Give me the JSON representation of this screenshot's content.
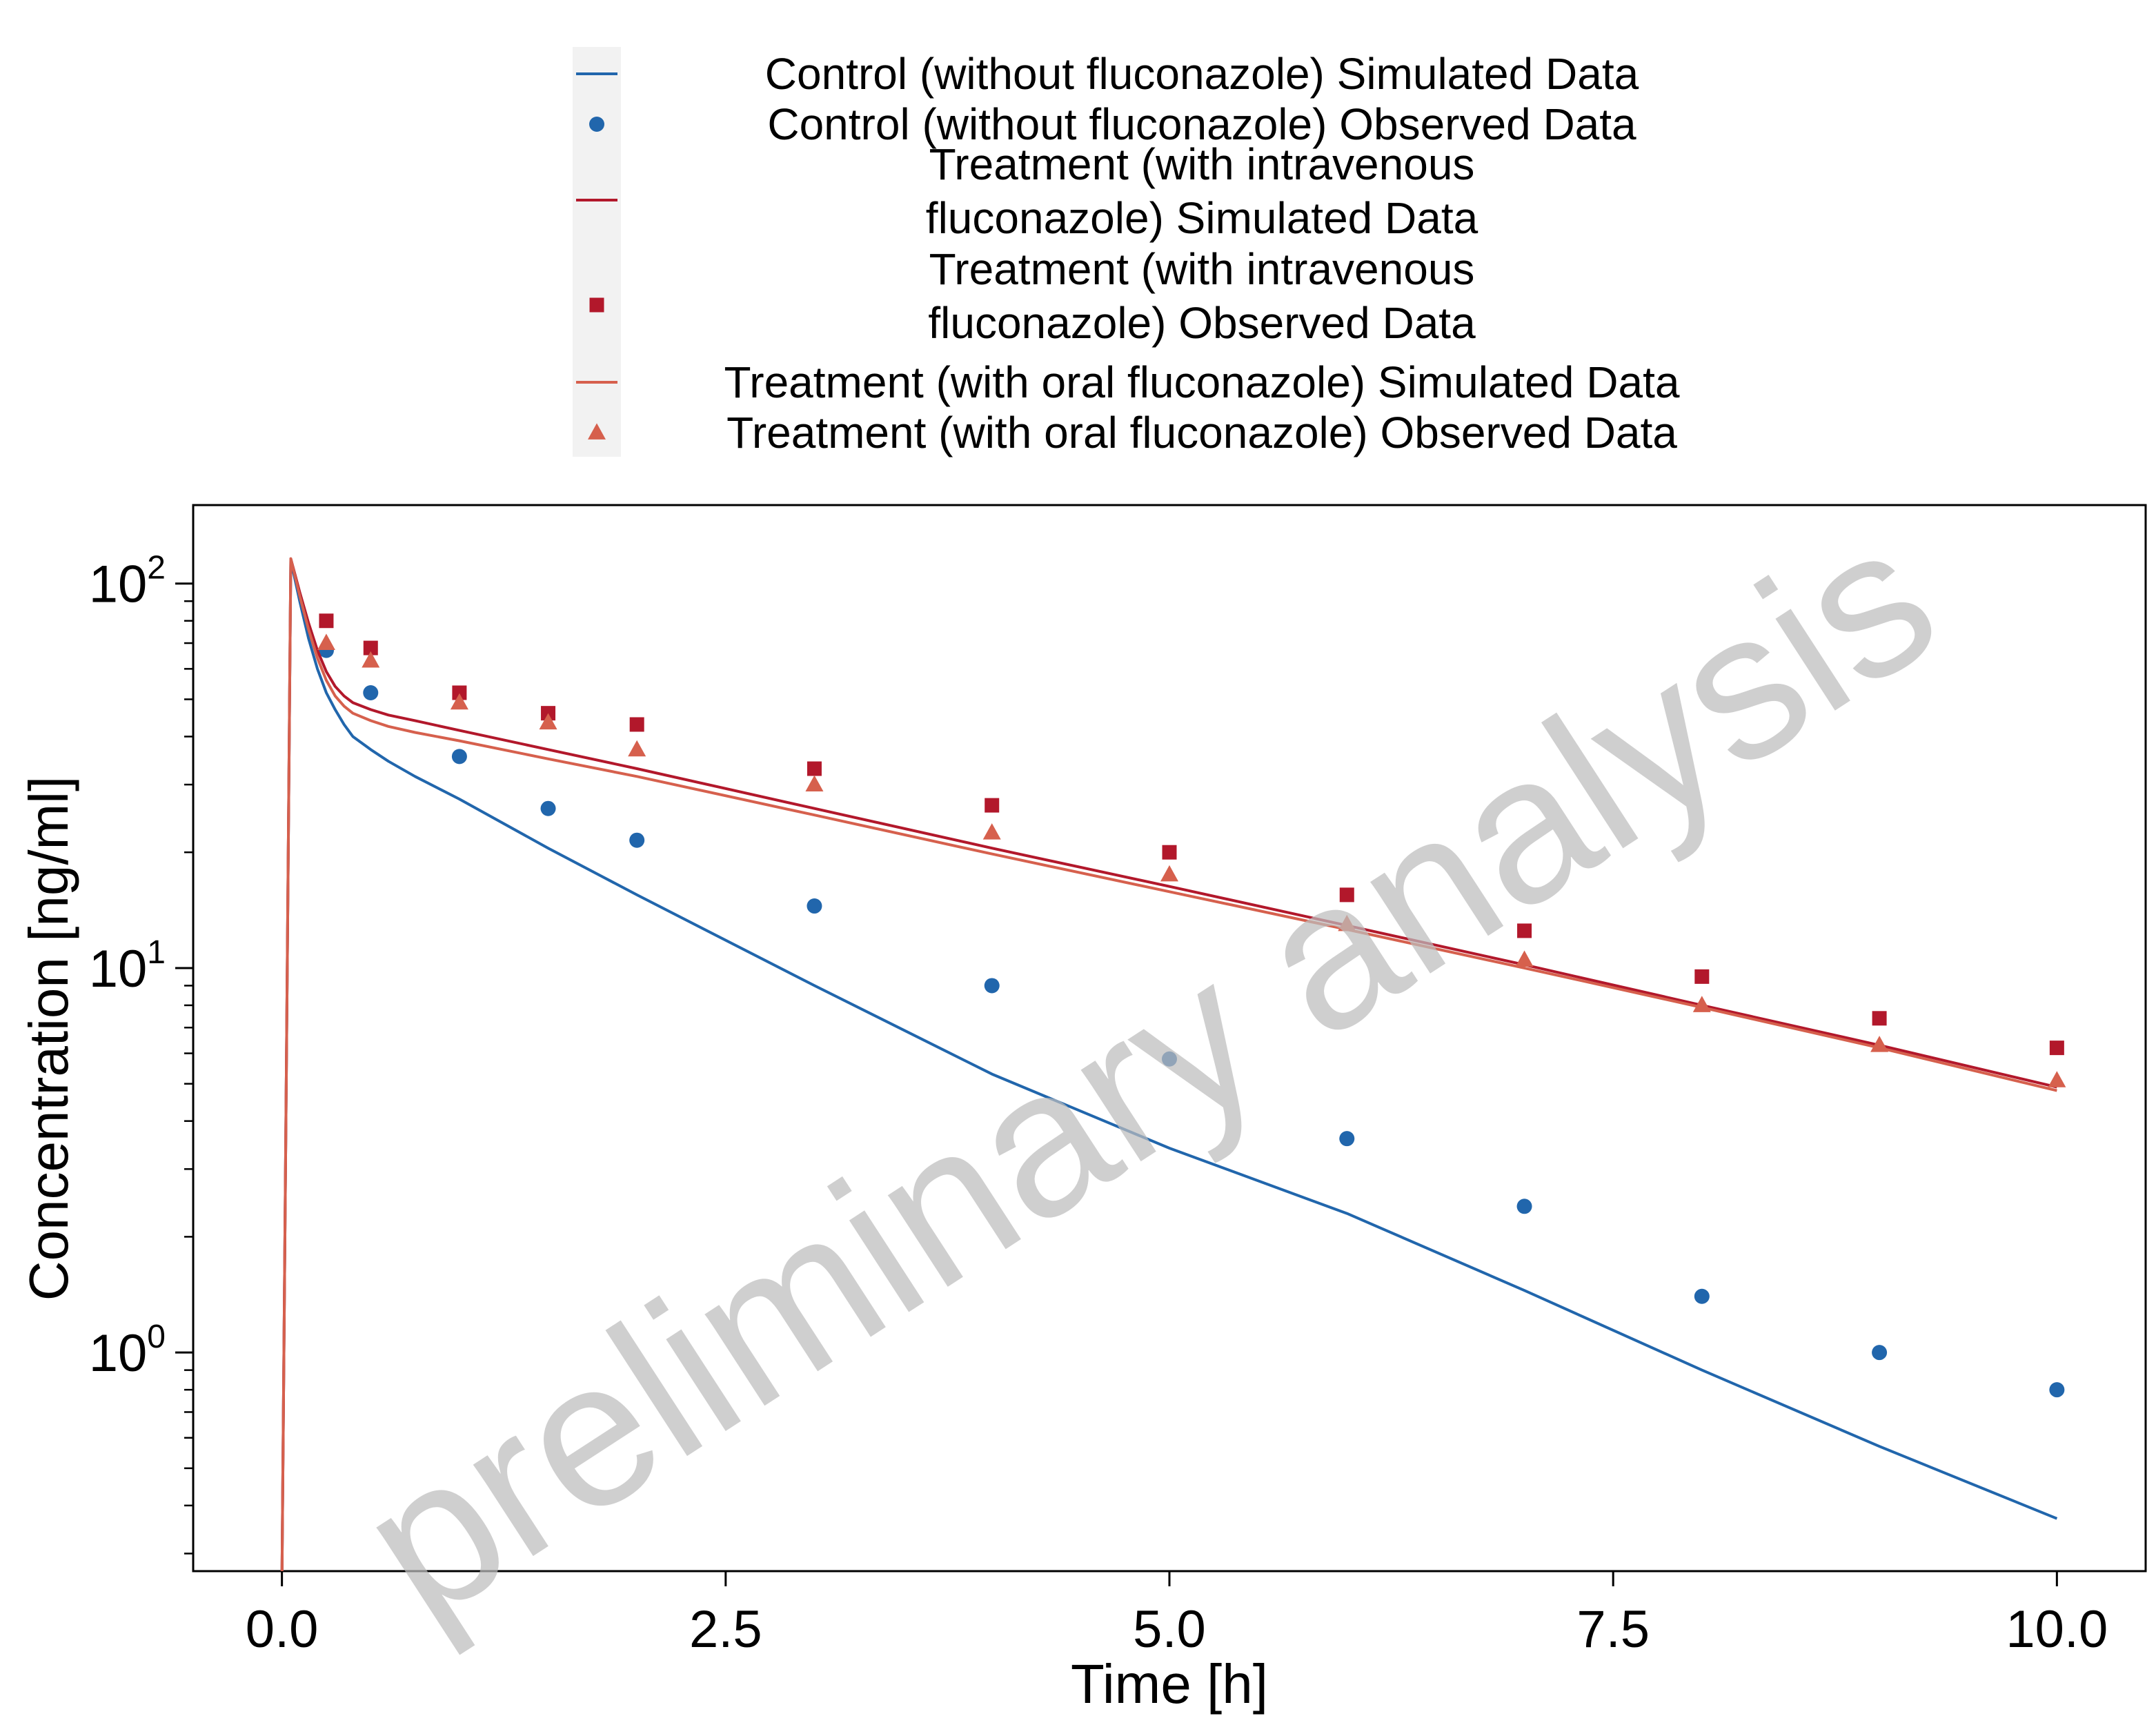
{
  "chart_data": {
    "type": "line",
    "title": "",
    "xlabel": "Time [h]",
    "ylabel": "Concentration [ng/ml]",
    "xlim": [
      -0.5,
      10.5
    ],
    "ylim": [
      0.27,
      160
    ],
    "yscale": "log",
    "grid": false,
    "legend_position": "top-center",
    "watermark": "preliminary analysis",
    "x_ticks": [
      {
        "value": 0.0,
        "label": "0.0"
      },
      {
        "value": 2.5,
        "label": "2.5"
      },
      {
        "value": 5.0,
        "label": "5.0"
      },
      {
        "value": 7.5,
        "label": "7.5"
      },
      {
        "value": 10.0,
        "label": "10.0"
      }
    ],
    "y_ticks": [
      {
        "value": 1,
        "base": "10",
        "exp": "0"
      },
      {
        "value": 10,
        "base": "10",
        "exp": "1"
      },
      {
        "value": 100,
        "base": "10",
        "exp": "2"
      }
    ],
    "series": [
      {
        "name": "Control (without fluconazole) Simulated Data",
        "kind": "line",
        "color": "#2166ac",
        "x": [
          0.0,
          0.05,
          0.1,
          0.15,
          0.2,
          0.25,
          0.3,
          0.35,
          0.4,
          0.5,
          0.6,
          0.75,
          1.0,
          1.5,
          2.0,
          3.0,
          4.0,
          5.0,
          6.0,
          7.0,
          8.0,
          9.0,
          10.0
        ],
        "y": [
          0.25,
          115,
          90,
          72,
          60,
          52,
          47,
          43,
          40,
          37,
          34.5,
          31.5,
          27.5,
          20.5,
          15.5,
          9.0,
          5.3,
          3.4,
          2.3,
          1.45,
          0.9,
          0.57,
          0.37
        ]
      },
      {
        "name": "Control (without fluconazole) Observed Data",
        "kind": "scatter",
        "marker": "circle",
        "color": "#2166ac",
        "x": [
          0.25,
          0.5,
          1.0,
          1.5,
          2.0,
          3.0,
          4.0,
          5.0,
          6.0,
          7.0,
          8.0,
          9.0,
          10.0
        ],
        "y": [
          67,
          52,
          35.5,
          26,
          21.5,
          14.5,
          9.0,
          5.8,
          3.6,
          2.4,
          1.4,
          1.0,
          0.8
        ]
      },
      {
        "name": "Treatment (with intravenous fluconazole) Simulated Data",
        "kind": "line",
        "color": "#b2182b",
        "x": [
          0.0,
          0.05,
          0.1,
          0.15,
          0.2,
          0.25,
          0.3,
          0.35,
          0.4,
          0.5,
          0.6,
          0.75,
          1.0,
          1.5,
          2.0,
          3.0,
          4.0,
          5.0,
          6.0,
          7.0,
          8.0,
          9.0,
          10.0
        ],
        "y": [
          0.25,
          116,
          95,
          79,
          67,
          59,
          54,
          51,
          49,
          47,
          45.5,
          44,
          41.5,
          37,
          33,
          26,
          20.5,
          16.3,
          12.9,
          10.2,
          8.0,
          6.3,
          4.9
        ]
      },
      {
        "name": "Treatment (with intravenous fluconazole) Observed Data",
        "kind": "scatter",
        "marker": "square",
        "color": "#b2182b",
        "x": [
          0.25,
          0.5,
          1.0,
          1.5,
          2.0,
          3.0,
          4.0,
          5.0,
          6.0,
          7.0,
          8.0,
          9.0,
          10.0
        ],
        "y": [
          80,
          68,
          52,
          46,
          43,
          33,
          26.5,
          20,
          15.5,
          12.5,
          9.5,
          7.4,
          6.2
        ]
      },
      {
        "name": "Treatment (with oral fluconazole) Simulated Data",
        "kind": "line",
        "color": "#d6604d",
        "x": [
          0.0,
          0.05,
          0.1,
          0.15,
          0.2,
          0.25,
          0.3,
          0.35,
          0.4,
          0.5,
          0.6,
          0.75,
          1.0,
          1.5,
          2.0,
          3.0,
          4.0,
          5.0,
          6.0,
          7.0,
          8.0,
          9.0,
          10.0
        ],
        "y": [
          0.25,
          116,
          93,
          76,
          64,
          56,
          51,
          48,
          46,
          44,
          42.5,
          41,
          39,
          35,
          31.5,
          25,
          19.8,
          15.8,
          12.6,
          10.0,
          7.9,
          6.2,
          4.8
        ]
      },
      {
        "name": "Treatment (with oral fluconazole) Observed Data",
        "kind": "scatter",
        "marker": "triangle",
        "color": "#d6604d",
        "x": [
          0.25,
          0.5,
          1.0,
          1.5,
          2.0,
          3.0,
          4.0,
          5.0,
          6.0,
          7.0,
          8.0,
          9.0,
          10.0
        ],
        "y": [
          70,
          63,
          49,
          43.5,
          37,
          30,
          22.5,
          17.5,
          13,
          10.5,
          8.0,
          6.3,
          5.1
        ]
      }
    ],
    "legend_lines": [
      [
        "Control (without fluconazole) Simulated Data"
      ],
      [
        "Control (without fluconazole) Observed Data"
      ],
      [
        "Treatment (with intravenous",
        "fluconazole) Simulated Data"
      ],
      [
        "Treatment (with intravenous",
        "fluconazole) Observed Data"
      ],
      [
        "Treatment (with oral fluconazole) Simulated Data"
      ],
      [
        "Treatment (with oral fluconazole) Observed Data"
      ]
    ]
  }
}
